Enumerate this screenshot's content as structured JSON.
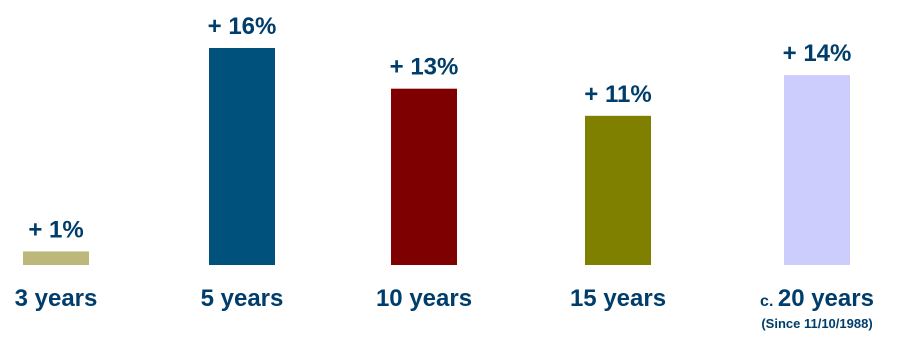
{
  "chart_data": {
    "type": "bar",
    "categories": [
      "3 years",
      "5 years",
      "10 years",
      "15 years",
      "20 years"
    ],
    "category_prefixes": [
      "",
      "",
      "",
      "",
      "c. "
    ],
    "category_sublabels": [
      "",
      "",
      "",
      "",
      "(Since 11/10/1988)"
    ],
    "values": [
      1,
      16,
      13,
      11,
      14
    ],
    "value_labels": [
      "+ 1%",
      "+ 16%",
      "+ 13%",
      "+ 11%",
      "+ 14%"
    ],
    "colors": [
      "#bcb77b",
      "#00517c",
      "#7f0000",
      "#808000",
      "#ccccfd"
    ],
    "title": "",
    "xlabel": "",
    "ylabel": "",
    "ylim": [
      0,
      16
    ],
    "grid": false,
    "legend": "none"
  }
}
